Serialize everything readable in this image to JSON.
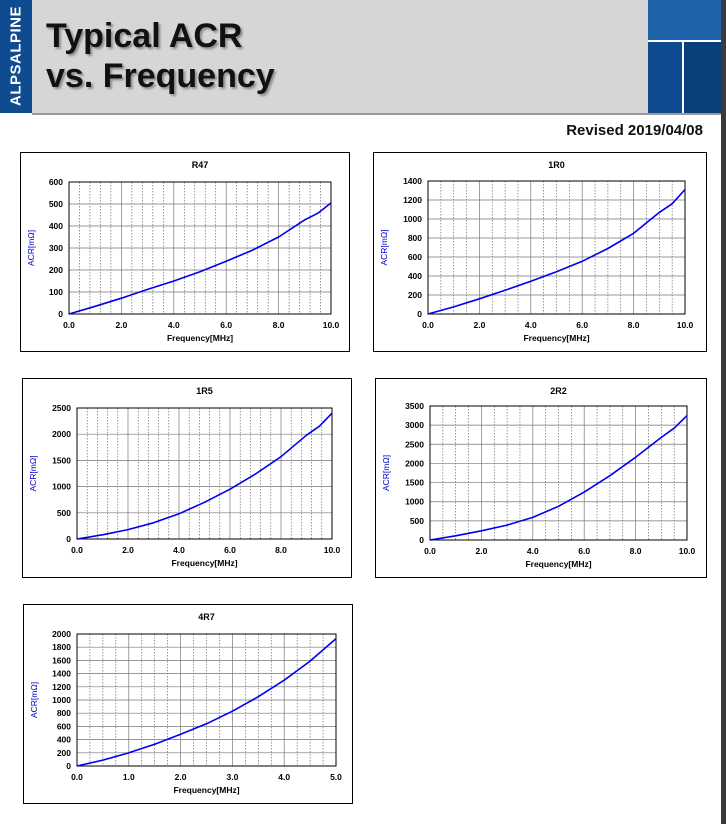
{
  "header": {
    "brand": "ALPSALPINE",
    "title_line1": "Typical ACR",
    "title_line2": "vs. Frequency",
    "revised": "Revised 2019/04/08"
  },
  "colors": {
    "brand_blue": "#0f4c8f",
    "curve": "#0000ee",
    "header_gray": "#d6d6d6"
  },
  "chart_data": [
    {
      "type": "line",
      "title": "R47",
      "xlabel": "Frequency[MHz]",
      "ylabel": "ACR[mΩ]",
      "xlim": [
        0,
        10
      ],
      "ylim": [
        0,
        600
      ],
      "xticks": [
        "0.0",
        "2.0",
        "4.0",
        "6.0",
        "8.0",
        "10.0"
      ],
      "yticks": [
        "0",
        "100",
        "200",
        "300",
        "400",
        "500",
        "600"
      ],
      "grid": true,
      "series": [
        {
          "x": [
            0,
            1,
            2,
            3,
            4,
            5,
            6,
            7,
            8,
            9,
            9.5,
            10
          ],
          "values": [
            0,
            35,
            72,
            112,
            150,
            192,
            240,
            290,
            350,
            428,
            458,
            505
          ]
        }
      ]
    },
    {
      "type": "line",
      "title": "1R0",
      "xlabel": "Frequency[MHz]",
      "ylabel": "ACR[mΩ]",
      "xlim": [
        0,
        10
      ],
      "ylim": [
        0,
        1400
      ],
      "xticks": [
        "0.0",
        "2.0",
        "4.0",
        "6.0",
        "8.0",
        "10.0"
      ],
      "yticks": [
        "0",
        "200",
        "400",
        "600",
        "800",
        "1000",
        "1200",
        "1400"
      ],
      "grid": true,
      "series": [
        {
          "x": [
            0,
            1,
            2,
            3,
            4,
            5,
            6,
            7,
            8,
            9,
            9.5,
            10
          ],
          "values": [
            0,
            75,
            160,
            250,
            345,
            445,
            555,
            690,
            850,
            1070,
            1160,
            1310
          ]
        }
      ]
    },
    {
      "type": "line",
      "title": "1R5",
      "xlabel": "Frequency[MHz]",
      "ylabel": "ACR[mΩ]",
      "xlim": [
        0,
        10
      ],
      "ylim": [
        0,
        2500
      ],
      "xticks": [
        "0.0",
        "2.0",
        "4.0",
        "6.0",
        "8.0",
        "10.0"
      ],
      "yticks": [
        "0",
        "500",
        "1000",
        "1500",
        "2000",
        "2500"
      ],
      "grid": true,
      "series": [
        {
          "x": [
            0,
            1,
            2,
            3,
            4,
            5,
            6,
            7,
            8,
            9,
            9.5,
            10
          ],
          "values": [
            0,
            80,
            180,
            310,
            480,
            700,
            950,
            1240,
            1570,
            1980,
            2150,
            2400
          ]
        }
      ]
    },
    {
      "type": "line",
      "title": "2R2",
      "xlabel": "Frequency[MHz]",
      "ylabel": "ACR[mΩ]",
      "xlim": [
        0,
        10
      ],
      "ylim": [
        0,
        3500
      ],
      "xticks": [
        "0.0",
        "2.0",
        "4.0",
        "6.0",
        "8.0",
        "10.0"
      ],
      "yticks": [
        "0",
        "500",
        "1000",
        "1500",
        "2000",
        "2500",
        "3000",
        "3500"
      ],
      "grid": true,
      "series": [
        {
          "x": [
            0,
            1,
            2,
            3,
            4,
            5,
            6,
            7,
            8,
            9,
            9.5,
            10
          ],
          "values": [
            0,
            110,
            240,
            390,
            590,
            880,
            1250,
            1680,
            2160,
            2680,
            2920,
            3250
          ]
        }
      ]
    },
    {
      "type": "line",
      "title": "4R7",
      "xlabel": "Frequency[MHz]",
      "ylabel": "ACR[mΩ]",
      "xlim": [
        0,
        5
      ],
      "ylim": [
        0,
        2000
      ],
      "xticks": [
        "0.0",
        "1.0",
        "2.0",
        "3.0",
        "4.0",
        "5.0"
      ],
      "yticks": [
        "0",
        "200",
        "400",
        "600",
        "800",
        "1000",
        "1200",
        "1400",
        "1600",
        "1800",
        "2000"
      ],
      "grid": true,
      "series": [
        {
          "x": [
            0,
            0.5,
            1,
            1.5,
            2,
            2.5,
            3,
            3.5,
            4,
            4.5,
            5
          ],
          "values": [
            0,
            90,
            200,
            330,
            480,
            640,
            830,
            1050,
            1300,
            1590,
            1930
          ]
        }
      ]
    }
  ]
}
